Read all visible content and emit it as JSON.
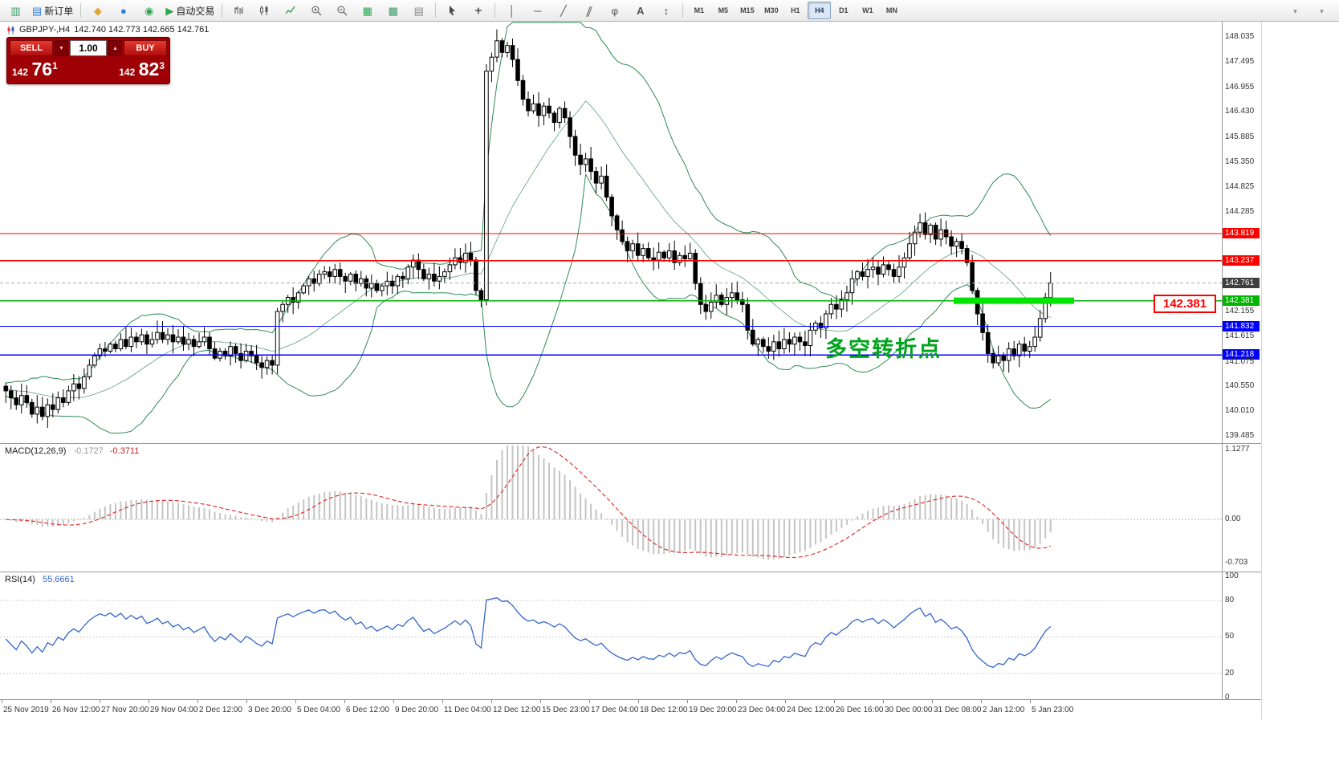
{
  "toolbar": {
    "new_order_label": "新订单",
    "autotrading_label": "自动交易",
    "timeframes": [
      "M1",
      "M5",
      "M15",
      "M30",
      "H1",
      "H4",
      "D1",
      "W1",
      "MN"
    ],
    "active_timeframe": "H4"
  },
  "icons": {
    "chart_window": "▥",
    "new_order": "▤",
    "funnel": "◆",
    "globe": "●",
    "community": "◉",
    "autotrading_play": "▶",
    "tile_windows": "▦",
    "cascade_windows": "▩",
    "indicator_list": "▤",
    "crosshair": "+",
    "vertical_line": "│",
    "horizontal_line": "─",
    "trendline": "╱",
    "channel": "∥",
    "fibonacci": "φ",
    "text_tool": "A",
    "arrows_tool": "↕",
    "overflow_1": "▾",
    "overflow_2": "▾"
  },
  "symbol_bar": {
    "symbol": "GBPJPY-,H4",
    "ohlc": "142.740 142.773 142.665 142.761"
  },
  "trade_panel": {
    "sell_label": "SELL",
    "buy_label": "BUY",
    "volume": "1.00",
    "sell_prefix": "142",
    "sell_big": "76",
    "sell_sup": "1",
    "buy_prefix": "142",
    "buy_big": "82",
    "buy_sup": "3"
  },
  "annotations": {
    "turning_point_text": "多空转折点",
    "price_callout": "142.381"
  },
  "chart_data": {
    "type": "candlestick",
    "symbol": "GBPJPY-",
    "timeframe": "H4",
    "y_range": [
      139.33,
      148.36
    ],
    "first_open": 140.55,
    "preroll_closes": [
      140.5,
      140.42,
      140.58,
      140.48,
      140.35,
      140.46,
      140.55,
      140.38,
      140.5,
      140.6,
      140.44,
      140.52,
      140.34,
      140.47,
      140.58,
      140.5,
      140.41,
      140.54,
      140.46,
      140.5
    ],
    "closes": [
      140.45,
      140.3,
      140.15,
      140.35,
      140.2,
      139.95,
      140.1,
      139.9,
      140.15,
      140.05,
      140.3,
      140.2,
      140.45,
      140.6,
      140.5,
      140.75,
      141.0,
      141.2,
      141.35,
      141.3,
      141.45,
      141.35,
      141.55,
      141.4,
      141.6,
      141.5,
      141.65,
      141.45,
      141.55,
      141.7,
      141.55,
      141.65,
      141.5,
      141.6,
      141.45,
      141.55,
      141.4,
      141.5,
      141.6,
      141.35,
      141.15,
      141.3,
      141.2,
      141.4,
      141.25,
      141.1,
      141.3,
      141.2,
      141.05,
      140.95,
      141.1,
      141.0,
      142.15,
      142.3,
      142.45,
      142.35,
      142.55,
      142.7,
      142.85,
      142.75,
      142.95,
      143.0,
      142.9,
      143.05,
      142.9,
      142.8,
      142.95,
      142.75,
      142.85,
      142.65,
      142.75,
      142.6,
      142.7,
      142.8,
      142.7,
      142.9,
      142.85,
      143.1,
      143.25,
      143.05,
      142.85,
      142.95,
      142.8,
      142.9,
      143.0,
      143.15,
      143.3,
      143.2,
      143.4,
      143.25,
      142.6,
      142.4,
      147.3,
      147.6,
      147.95,
      147.7,
      147.85,
      147.55,
      147.1,
      146.7,
      146.45,
      146.6,
      146.35,
      146.55,
      146.4,
      146.2,
      146.5,
      146.3,
      145.9,
      145.5,
      145.3,
      145.42,
      145.15,
      144.9,
      145.05,
      144.6,
      144.2,
      143.9,
      143.65,
      143.45,
      143.6,
      143.35,
      143.5,
      143.3,
      143.25,
      143.42,
      143.3,
      143.45,
      143.2,
      143.35,
      143.28,
      143.4,
      142.75,
      142.3,
      142.15,
      142.35,
      142.5,
      142.3,
      142.45,
      142.55,
      142.4,
      142.3,
      141.75,
      141.45,
      141.55,
      141.4,
      141.3,
      141.5,
      141.35,
      141.55,
      141.45,
      141.6,
      141.5,
      141.42,
      141.75,
      141.9,
      141.8,
      142.1,
      142.3,
      142.2,
      142.4,
      142.55,
      142.85,
      143.0,
      142.9,
      143.05,
      143.1,
      142.95,
      143.15,
      143.05,
      142.9,
      143.1,
      143.3,
      143.6,
      143.85,
      144.05,
      143.8,
      144.0,
      143.7,
      143.9,
      143.75,
      143.55,
      143.65,
      143.5,
      143.2,
      142.6,
      142.1,
      141.7,
      141.25,
      141.05,
      141.2,
      141.1,
      141.35,
      141.2,
      141.45,
      141.3,
      141.4,
      141.6,
      142.0,
      142.45,
      142.761
    ],
    "indicators": {
      "bollinger": {
        "period": 20,
        "deviation": 2,
        "color": "#2E8B57"
      },
      "macd": {
        "label": "MACD(12,26,9)",
        "fast": 12,
        "slow": 26,
        "signal": 9,
        "value_main": "-0.1727",
        "value_signal": "-0.3711",
        "histogram_color": "#c4c4c4",
        "signal_color": "#e23030",
        "y_ticks": [
          {
            "v": 1.1277,
            "label": "1.1277"
          },
          {
            "v": 0,
            "label": "0.00"
          },
          {
            "v": -0.703,
            "label": "-0.703"
          }
        ]
      },
      "rsi": {
        "label": "RSI(14)",
        "period": 14,
        "value": "55.6661",
        "line_color": "#3366cc",
        "y_ticks": [
          100,
          80,
          50,
          20,
          0
        ],
        "levels_dotted": [
          80,
          50,
          20
        ]
      }
    },
    "horizontal_lines": [
      {
        "price": 143.819,
        "color": "#ff0000",
        "name": "resistance-upper"
      },
      {
        "price": 143.237,
        "color": "#ff0000",
        "name": "resistance-lower"
      },
      {
        "price": 142.761,
        "color": "#a8a8a8",
        "badge": "#3f3f3f",
        "style": "dashed",
        "name": "current-price"
      },
      {
        "price": 142.381,
        "color": "#00b400",
        "name": "pivot-green"
      },
      {
        "price": 141.832,
        "color": "#0000ff",
        "name": "support-upper"
      },
      {
        "price": 141.218,
        "color": "#0000ff",
        "name": "support-lower"
      }
    ],
    "highlight_bar": {
      "price": 142.381,
      "color": "#00e400"
    },
    "y_ticks": [
      148.035,
      147.495,
      146.955,
      146.43,
      145.885,
      145.35,
      144.825,
      144.285,
      142.155,
      141.615,
      141.075,
      140.55,
      140.01,
      139.485
    ],
    "x_labels": [
      "25 Nov 2019",
      "26 Nov 12:00",
      "27 Nov 20:00",
      "29 Nov 04:00",
      "2 Dec 12:00",
      "3 Dec 20:00",
      "5 Dec 04:00",
      "6 Dec 12:00",
      "9 Dec 20:00",
      "11 Dec 04:00",
      "12 Dec 12:00",
      "15 Dec 23:00",
      "17 Dec 04:00",
      "18 Dec 12:00",
      "19 Dec 20:00",
      "23 Dec 04:00",
      "24 Dec 12:00",
      "26 Dec 16:00",
      "30 Dec 00:00",
      "31 Dec 08:00",
      "2 Jan 12:00",
      "5 Jan 23:00"
    ]
  }
}
